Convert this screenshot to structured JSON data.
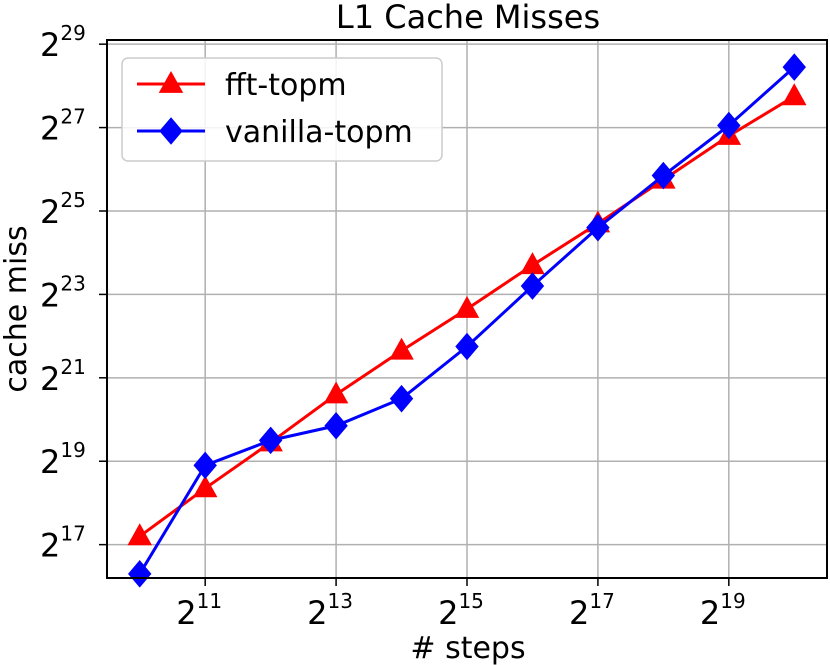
{
  "chart_data": {
    "type": "line",
    "title": "L1 Cache Misses",
    "xlabel": "# steps",
    "ylabel": "cache miss",
    "x_scale": "log2",
    "y_scale": "log2",
    "x_exponents": [
      10,
      11,
      12,
      13,
      14,
      15,
      16,
      17,
      18,
      19,
      20
    ],
    "x_ticks": [
      {
        "base": "2",
        "exp": "11",
        "value": 11
      },
      {
        "base": "2",
        "exp": "13",
        "value": 13
      },
      {
        "base": "2",
        "exp": "15",
        "value": 15
      },
      {
        "base": "2",
        "exp": "17",
        "value": 17
      },
      {
        "base": "2",
        "exp": "19",
        "value": 19
      }
    ],
    "y_ticks": [
      {
        "base": "2",
        "exp": "17",
        "value": 17
      },
      {
        "base": "2",
        "exp": "19",
        "value": 19
      },
      {
        "base": "2",
        "exp": "21",
        "value": 21
      },
      {
        "base": "2",
        "exp": "23",
        "value": 23
      },
      {
        "base": "2",
        "exp": "25",
        "value": 25
      },
      {
        "base": "2",
        "exp": "27",
        "value": 27
      },
      {
        "base": "2",
        "exp": "29",
        "value": 29
      }
    ],
    "xlim_exp": [
      9.5,
      20.5
    ],
    "ylim_exp": [
      16.2,
      29.1
    ],
    "grid": true,
    "legend_position": "top-left",
    "series": [
      {
        "name": "fft-topm",
        "color": "#ff0000",
        "marker": "triangle",
        "y_exp": [
          17.2,
          18.35,
          19.45,
          20.6,
          21.65,
          22.65,
          23.7,
          24.7,
          25.75,
          26.8,
          27.75
        ]
      },
      {
        "name": "vanilla-topm",
        "color": "#0000ff",
        "marker": "diamond",
        "y_exp": [
          16.3,
          18.9,
          19.5,
          19.85,
          20.5,
          21.75,
          23.2,
          24.6,
          25.85,
          27.05,
          28.45
        ]
      }
    ]
  }
}
